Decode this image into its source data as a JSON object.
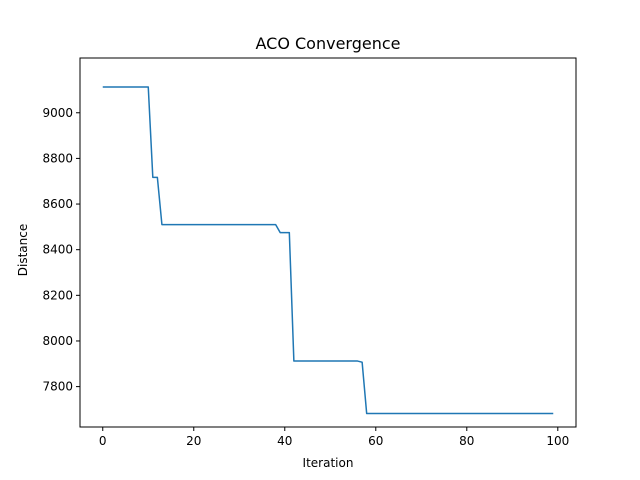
{
  "chart_data": {
    "type": "line",
    "title": "ACO Convergence",
    "xlabel": "Iteration",
    "ylabel": "Distance",
    "xlim": [
      -5,
      104
    ],
    "ylim": [
      7623,
      9240
    ],
    "xticks": [
      0,
      20,
      40,
      60,
      80,
      100
    ],
    "yticks": [
      7800,
      8000,
      8200,
      8400,
      8600,
      8800,
      9000
    ],
    "grid": false,
    "legend": "none",
    "series_color": "#1f77b4",
    "series": [
      {
        "x": [
          0,
          10,
          11,
          12,
          13,
          38,
          39,
          41,
          42,
          56,
          57,
          58,
          99
        ],
        "values": [
          9113,
          9113,
          8717,
          8717,
          8510,
          8510,
          8475,
          8475,
          7912,
          7912,
          7907,
          7682,
          7682
        ]
      }
    ]
  }
}
